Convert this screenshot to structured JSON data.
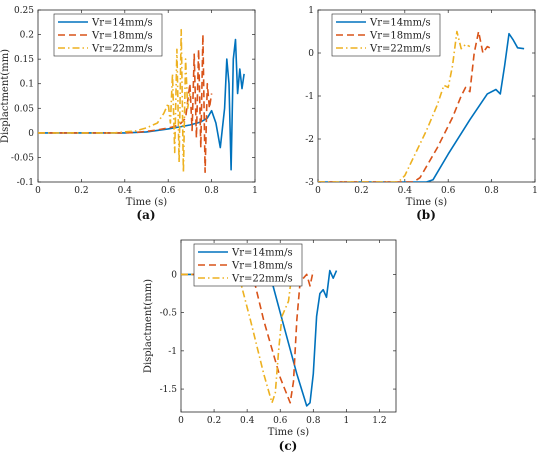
{
  "chart_data": [
    {
      "type": "line",
      "panel_label": "(a)",
      "xlabel": "Time (s)",
      "ylabel": "Displactment(mm)",
      "xlim": [
        0,
        1
      ],
      "ylim": [
        -0.1,
        0.25
      ],
      "xticks": [
        0,
        0.2,
        0.4,
        0.6,
        0.8,
        1
      ],
      "xtick_labels": [
        "0",
        "0.2",
        "0.4",
        "0.6",
        "0.8",
        "1"
      ],
      "yticks": [
        -0.1,
        -0.05,
        0,
        0.05,
        0.1,
        0.15,
        0.2,
        0.25
      ],
      "ytick_labels": [
        "-0.1",
        "-0.05",
        "0",
        "0.05",
        "0.1",
        "0.15",
        "0.2",
        "0.25"
      ],
      "legend": "top-left",
      "grid": false,
      "series": [
        {
          "name": "Vr=14mm/s",
          "color": "#0072BD",
          "dash": "solid",
          "x": [
            0,
            0.4,
            0.5,
            0.55,
            0.6,
            0.65,
            0.7,
            0.75,
            0.78,
            0.8,
            0.82,
            0.84,
            0.86,
            0.87,
            0.88,
            0.89,
            0.9,
            0.91,
            0.92,
            0.93,
            0.94,
            0.95
          ],
          "y": [
            0,
            0,
            0.002,
            0.005,
            0.008,
            0.012,
            0.016,
            0.022,
            0.03,
            0.045,
            0.02,
            -0.03,
            0.05,
            0.15,
            0.1,
            -0.075,
            0.15,
            0.19,
            0.08,
            0.13,
            0.09,
            0.12
          ]
        },
        {
          "name": "Vr=18mm/s",
          "color": "#D95319",
          "dash": "dashed",
          "x": [
            0,
            0.4,
            0.45,
            0.5,
            0.55,
            0.6,
            0.62,
            0.64,
            0.66,
            0.68,
            0.7,
            0.71,
            0.72,
            0.73,
            0.74,
            0.75,
            0.76,
            0.77,
            0.78,
            0.79,
            0.8
          ],
          "y": [
            0,
            0,
            0.001,
            0.003,
            0.006,
            0.01,
            0.012,
            0.015,
            0.02,
            0.03,
            0.1,
            0.005,
            0.16,
            -0.01,
            0.17,
            -0.03,
            0.2,
            -0.08,
            0.1,
            0.05,
            0.08
          ]
        },
        {
          "name": "Vr=22mm/s",
          "color": "#EDB120",
          "dash": "dashdot",
          "x": [
            0,
            0.35,
            0.45,
            0.5,
            0.55,
            0.58,
            0.6,
            0.61,
            0.62,
            0.63,
            0.64,
            0.65,
            0.66,
            0.67,
            0.68,
            0.69,
            0.7
          ],
          "y": [
            0,
            0,
            0.004,
            0.01,
            0.02,
            0.04,
            0.06,
            0.02,
            0.12,
            -0.04,
            0.17,
            -0.06,
            0.21,
            -0.08,
            0.15,
            0.05,
            0.08
          ]
        }
      ]
    },
    {
      "type": "line",
      "panel_label": "(b)",
      "xlabel": "Time (s)",
      "ylabel": "",
      "xlim": [
        0,
        1
      ],
      "ylim": [
        -3,
        1
      ],
      "xticks": [
        0,
        0.2,
        0.4,
        0.6,
        0.8,
        1
      ],
      "xtick_labels": [
        "0",
        "0.2",
        "0.4",
        "0.6",
        "0.8",
        "1"
      ],
      "yticks": [
        -3,
        -2,
        -1,
        0,
        1
      ],
      "ytick_labels": [
        "-3",
        "-2",
        "-1",
        "0",
        "1"
      ],
      "legend": "top-left",
      "grid": false,
      "series": [
        {
          "name": "Vr=14mm/s",
          "color": "#0072BD",
          "dash": "solid",
          "x": [
            0,
            0.5,
            0.53,
            0.6,
            0.7,
            0.78,
            0.82,
            0.84,
            0.86,
            0.88,
            0.9,
            0.92,
            0.95
          ],
          "y": [
            -3,
            -3,
            -2.95,
            -2.35,
            -1.55,
            -0.95,
            -0.85,
            -0.95,
            -0.3,
            0.45,
            0.3,
            0.12,
            0.1
          ]
        },
        {
          "name": "Vr=18mm/s",
          "color": "#D95319",
          "dash": "dashed",
          "x": [
            0,
            0.44,
            0.47,
            0.55,
            0.62,
            0.66,
            0.68,
            0.7,
            0.72,
            0.74,
            0.76,
            0.78,
            0.8
          ],
          "y": [
            -3,
            -3,
            -2.9,
            -2.2,
            -1.5,
            -1.0,
            -0.8,
            -0.9,
            0.0,
            0.5,
            0.0,
            0.15,
            0.1
          ]
        },
        {
          "name": "Vr=22mm/s",
          "color": "#EDB120",
          "dash": "dashdot",
          "x": [
            0,
            0.37,
            0.4,
            0.5,
            0.55,
            0.58,
            0.6,
            0.62,
            0.64,
            0.66,
            0.68,
            0.7
          ],
          "y": [
            -3,
            -3,
            -2.85,
            -1.8,
            -1.2,
            -0.75,
            -0.8,
            -0.3,
            0.5,
            0.1,
            0.2,
            0.15
          ]
        }
      ]
    },
    {
      "type": "line",
      "panel_label": "(c)",
      "xlabel": "Time (s)",
      "ylabel": "Displactment(mm)",
      "xlim": [
        0,
        1.3
      ],
      "ylim": [
        -1.8,
        0.45
      ],
      "xticks": [
        0,
        0.2,
        0.4,
        0.6,
        0.8,
        1,
        1.2
      ],
      "xtick_labels": [
        "0",
        "0.2",
        "0.4",
        "0.6",
        "0.8",
        "1",
        "1.2"
      ],
      "yticks": [
        -1.5,
        -1,
        -0.5,
        0
      ],
      "ytick_labels": [
        "-1.5",
        "-1",
        "-0.5",
        "0"
      ],
      "legend": "top-left",
      "grid": false,
      "series": [
        {
          "name": "Vr=14mm/s",
          "color": "#0072BD",
          "dash": "solid",
          "x": [
            0,
            0.52,
            0.55,
            0.6,
            0.7,
            0.76,
            0.78,
            0.8,
            0.82,
            0.84,
            0.86,
            0.88,
            0.9,
            0.92,
            0.94
          ],
          "y": [
            0,
            0,
            -0.1,
            -0.5,
            -1.3,
            -1.72,
            -1.68,
            -1.3,
            -0.55,
            -0.25,
            -0.2,
            -0.3,
            0.05,
            -0.05,
            0.05
          ]
        },
        {
          "name": "Vr=18mm/s",
          "color": "#D95319",
          "dash": "dashed",
          "x": [
            0,
            0.42,
            0.45,
            0.5,
            0.6,
            0.66,
            0.68,
            0.7,
            0.72,
            0.74,
            0.76,
            0.78,
            0.8
          ],
          "y": [
            0,
            0,
            -0.15,
            -0.6,
            -1.35,
            -1.68,
            -1.4,
            -0.6,
            -0.1,
            -0.05,
            0.0,
            -0.15,
            0.05
          ]
        },
        {
          "name": "Vr=22mm/s",
          "color": "#EDB120",
          "dash": "dashdot",
          "x": [
            0,
            0.33,
            0.36,
            0.42,
            0.5,
            0.55,
            0.57,
            0.59,
            0.61,
            0.63,
            0.65,
            0.67,
            0.69
          ],
          "y": [
            0,
            0,
            -0.1,
            -0.6,
            -1.3,
            -1.68,
            -1.55,
            -1.0,
            -0.55,
            -0.45,
            -0.35,
            0.0,
            0.0
          ]
        }
      ]
    }
  ]
}
